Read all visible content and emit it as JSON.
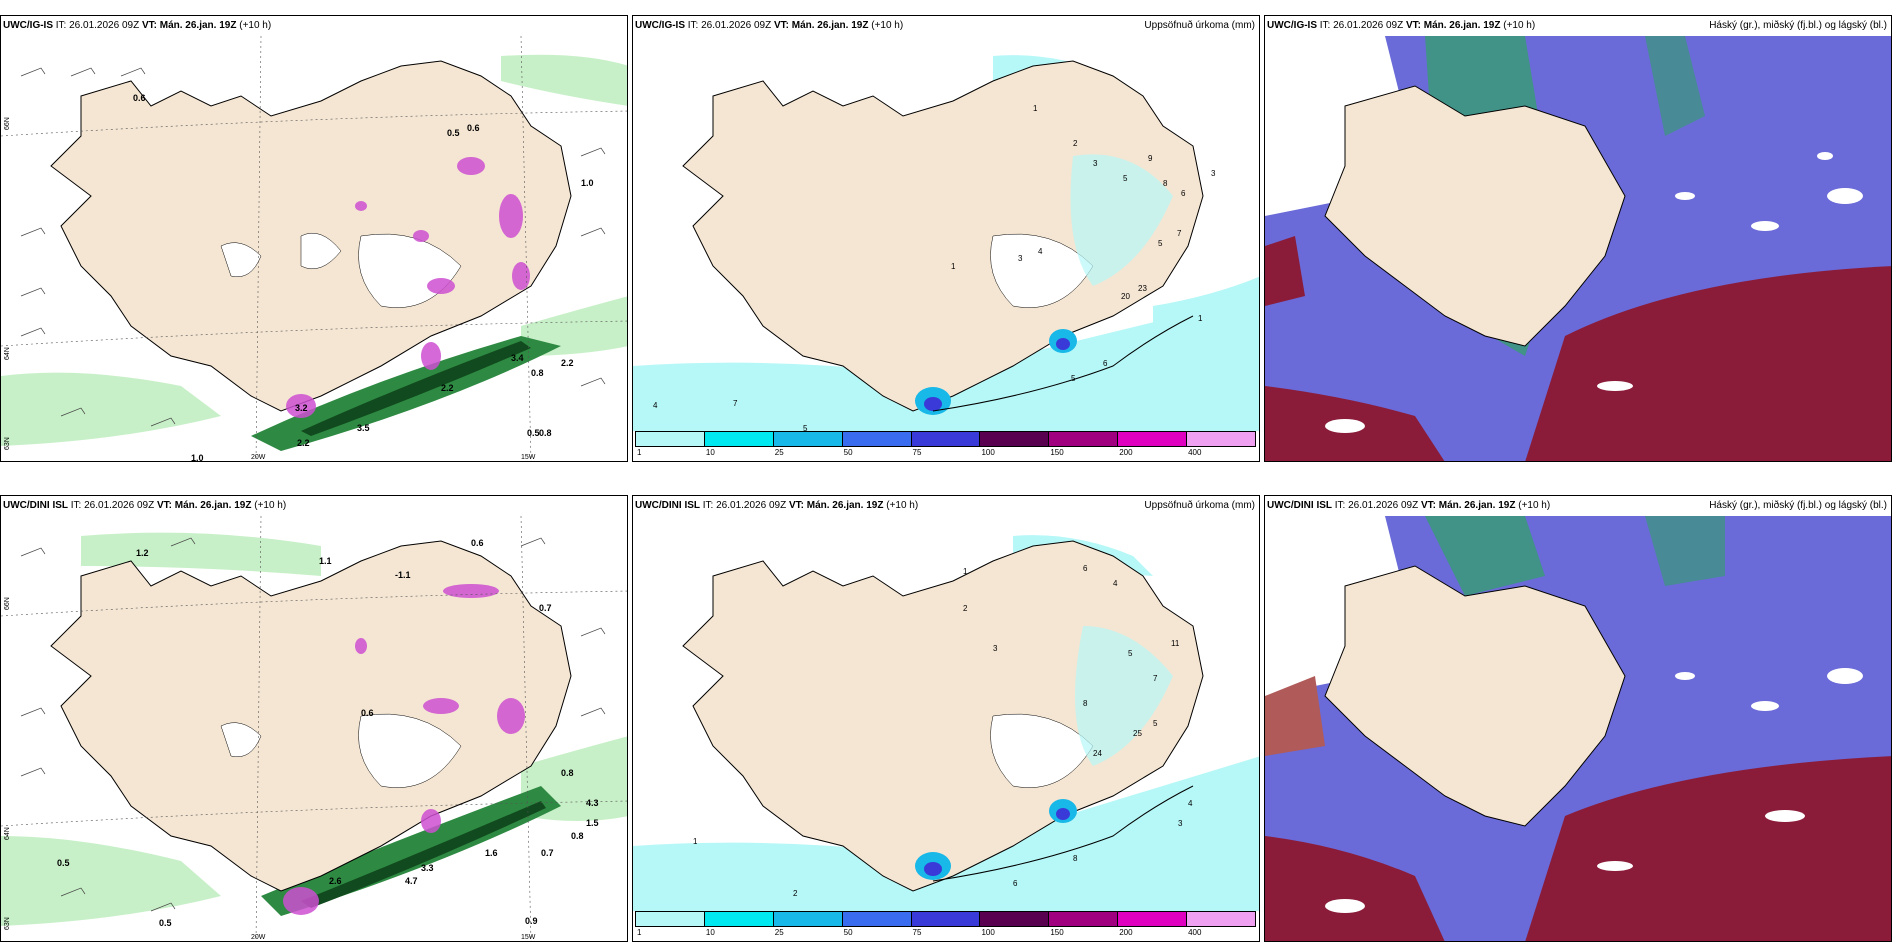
{
  "panels": {
    "ig_wind": {
      "model": "UWC/IG-IS",
      "it": "IT: 26.01.2026 09Z",
      "vt": "VT: Mán. 26.jan. 19Z",
      "lead": "(+10 h)"
    },
    "ig_precip": {
      "model": "UWC/IG-IS",
      "it": "IT: 26.01.2026 09Z",
      "vt": "VT: Mán. 26.jan. 19Z",
      "lead": "(+10 h)",
      "right_title": "Uppsöfnuð úrkoma (mm)"
    },
    "ig_cloud": {
      "model": "UWC/IG-IS",
      "it": "IT: 26.01.2026 09Z",
      "vt": "VT: Mán. 26.jan. 19Z",
      "lead": "(+10 h)",
      "right_title": "Háský (gr.), miðský (fj.bl.) og lágský (bl.)"
    },
    "dini_wind": {
      "model": "UWC/DINI ISL",
      "it": "IT: 26.01.2026 09Z",
      "vt": "VT: Mán. 26.jan. 19Z",
      "lead": "(+10 h)"
    },
    "dini_precip": {
      "model": "UWC/DINI ISL",
      "it": "IT: 26.01.2026 09Z",
      "vt": "VT: Mán. 26.jan. 19Z",
      "lead": "(+10 h)",
      "right_title": "Uppsöfnuð úrkoma (mm)"
    },
    "dini_cloud": {
      "model": "UWC/DINI ISL",
      "it": "IT: 26.01.2026 09Z",
      "vt": "VT: Mán. 26.jan. 19Z",
      "lead": "(+10 h)",
      "right_title": "Háský (gr.), miðský (fj.bl.) og lágský (bl.)"
    }
  },
  "axes": {
    "lat_66": "66N",
    "lat_64": "64N",
    "lat_63": "63N",
    "lon_20": "20W",
    "lon_15": "15W",
    "lat_66b": "66N"
  },
  "colorbar": {
    "ticks": [
      "1",
      "10",
      "25",
      "50",
      "75",
      "100",
      "150",
      "200",
      "400"
    ],
    "colors": [
      "#b6f7f7",
      "#00e8f0",
      "#18b8e8",
      "#3a6cf0",
      "#3a3ad8",
      "#5a0050",
      "#a00080",
      "#e000c0",
      "#f0a0f0"
    ]
  },
  "ig_wind_labels": {
    "a": "0.6",
    "b": "0.5",
    "c": "0.6",
    "d": "1.0",
    "e": "0.8",
    "f": "2.2",
    "g": "3.4",
    "h": "2.2",
    "i": "1.0",
    "j": "0.5",
    "k": "2.2",
    "l": "3.5",
    "m": "0.8",
    "n": "3.2"
  },
  "dini_wind_labels": {
    "a": "1.2",
    "b": "1.1",
    "c": "-1.1",
    "d": "0.6",
    "e": "0.7",
    "f": "0.8",
    "g": "0.5",
    "h": "0.5",
    "i": "2.6",
    "j": "4.7",
    "k": "3.3",
    "l": "1.6",
    "m": "0.7",
    "n": "0.9",
    "o": "1.5",
    "p": "0.8",
    "q": "4.3",
    "r": "0.6"
  },
  "ig_precip_labels": {
    "a": "1",
    "b": "2",
    "c": "3",
    "d": "5",
    "e": "9",
    "f": "8",
    "g": "6",
    "h": "3",
    "i": "7",
    "j": "5",
    "k": "4",
    "l": "1",
    "m": "3",
    "n": "5",
    "o": "6",
    "p": "7",
    "q": "4",
    "r": "5",
    "s": "20",
    "t": "23",
    "u": "1"
  },
  "dini_precip_labels": {
    "a": "1",
    "b": "2",
    "c": "3",
    "d": "5",
    "e": "6",
    "f": "4",
    "g": "11",
    "h": "7",
    "i": "8",
    "j": "5",
    "k": "4",
    "l": "3",
    "m": "2",
    "n": "24",
    "o": "25",
    "p": "1",
    "q": "8",
    "r": "6"
  },
  "colors": {
    "land": "#f5e6d3",
    "low_precip": "#b6f7f7",
    "green_shade": "#7be39a",
    "dark_green": "#1a5e2a",
    "purple": "#cc4fd0",
    "cloud_blue": "#6a6ad8",
    "cloud_red": "#8a1c3a",
    "cloud_green": "#3a9a7a"
  }
}
